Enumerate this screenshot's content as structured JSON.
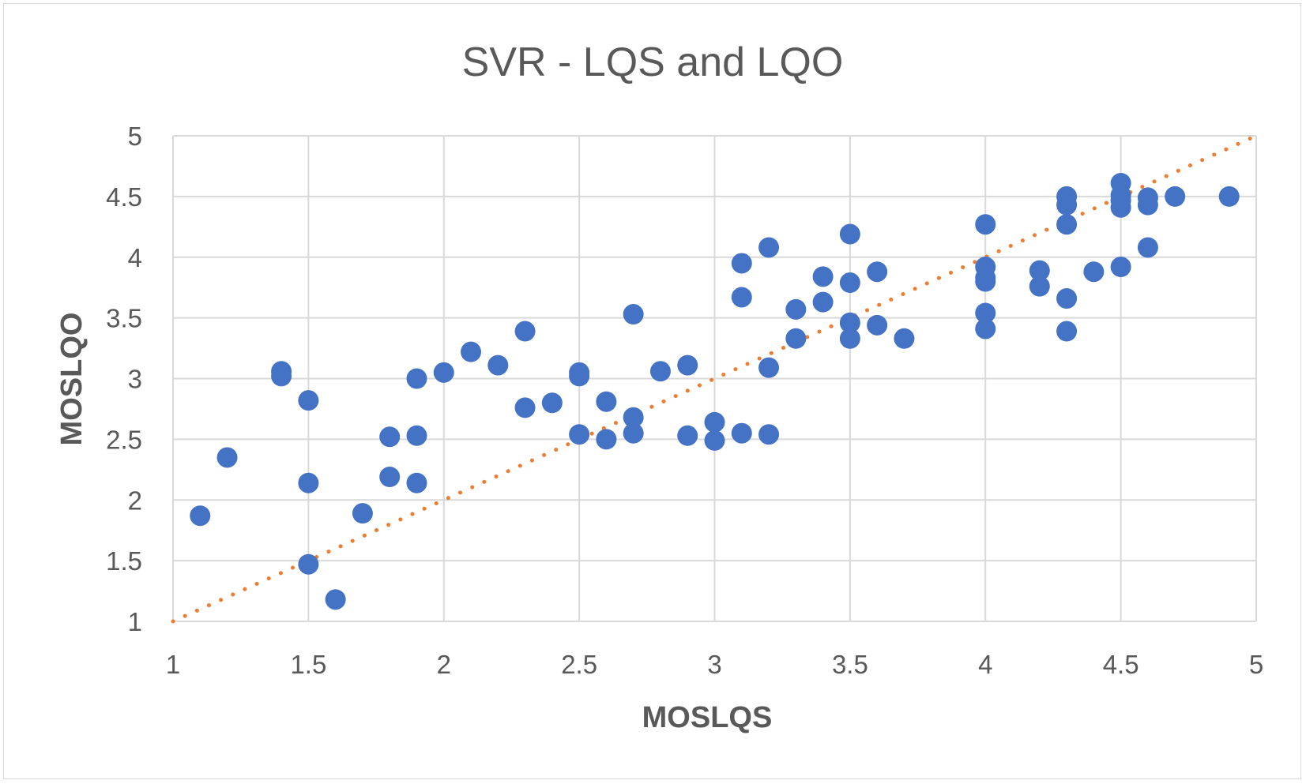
{
  "chart_data": {
    "type": "scatter",
    "title": "SVR - LQS and LQO",
    "xlabel": "MOSLQS",
    "ylabel": "MOSLQO",
    "xlim": [
      1,
      5
    ],
    "ylim": [
      1,
      5
    ],
    "xticks": [
      "1",
      "1.5",
      "2",
      "2.5",
      "3",
      "3.5",
      "4",
      "4.5",
      "5"
    ],
    "yticks": [
      "1",
      "1.5",
      "2",
      "2.5",
      "3",
      "3.5",
      "4",
      "4.5",
      "5"
    ],
    "grid": true,
    "legend": "none",
    "colors": {
      "points": "#4472C4",
      "trendline": "#ED7D31",
      "grid": "#d9d9d9",
      "text": "#595959"
    },
    "trendline": {
      "style": "dotted",
      "x": [
        1,
        5
      ],
      "y": [
        1,
        5
      ]
    },
    "series": [
      {
        "points": [
          [
            1.1,
            1.87
          ],
          [
            1.2,
            2.35
          ],
          [
            1.4,
            3.06
          ],
          [
            1.4,
            3.02
          ],
          [
            1.5,
            2.82
          ],
          [
            1.5,
            2.14
          ],
          [
            1.5,
            1.47
          ],
          [
            1.6,
            1.18
          ],
          [
            1.7,
            1.89
          ],
          [
            1.8,
            2.52
          ],
          [
            1.8,
            2.19
          ],
          [
            1.9,
            3.0
          ],
          [
            1.9,
            2.53
          ],
          [
            1.9,
            2.14
          ],
          [
            2.0,
            3.05
          ],
          [
            2.1,
            3.22
          ],
          [
            2.2,
            3.11
          ],
          [
            2.3,
            3.39
          ],
          [
            2.3,
            2.76
          ],
          [
            2.4,
            2.8
          ],
          [
            2.5,
            3.05
          ],
          [
            2.5,
            3.02
          ],
          [
            2.5,
            2.54
          ],
          [
            2.6,
            2.81
          ],
          [
            2.6,
            2.5
          ],
          [
            2.7,
            3.53
          ],
          [
            2.7,
            2.68
          ],
          [
            2.7,
            2.55
          ],
          [
            2.8,
            3.06
          ],
          [
            2.9,
            3.11
          ],
          [
            2.9,
            2.53
          ],
          [
            3.0,
            2.64
          ],
          [
            3.0,
            2.49
          ],
          [
            3.1,
            3.95
          ],
          [
            3.1,
            3.67
          ],
          [
            3.1,
            2.55
          ],
          [
            3.2,
            4.08
          ],
          [
            3.2,
            3.09
          ],
          [
            3.2,
            2.54
          ],
          [
            3.3,
            3.57
          ],
          [
            3.3,
            3.33
          ],
          [
            3.4,
            3.84
          ],
          [
            3.4,
            3.63
          ],
          [
            3.5,
            4.19
          ],
          [
            3.5,
            3.79
          ],
          [
            3.5,
            3.46
          ],
          [
            3.5,
            3.33
          ],
          [
            3.6,
            3.88
          ],
          [
            3.6,
            3.44
          ],
          [
            3.7,
            3.33
          ],
          [
            4.0,
            4.27
          ],
          [
            4.0,
            3.92
          ],
          [
            4.0,
            3.83
          ],
          [
            4.0,
            3.8
          ],
          [
            4.0,
            3.54
          ],
          [
            4.0,
            3.41
          ],
          [
            4.2,
            3.89
          ],
          [
            4.2,
            3.76
          ],
          [
            4.3,
            4.5
          ],
          [
            4.3,
            4.43
          ],
          [
            4.3,
            4.27
          ],
          [
            4.3,
            3.66
          ],
          [
            4.3,
            3.39
          ],
          [
            4.4,
            3.88
          ],
          [
            4.5,
            4.61
          ],
          [
            4.5,
            4.51
          ],
          [
            4.5,
            4.47
          ],
          [
            4.5,
            4.41
          ],
          [
            4.5,
            3.92
          ],
          [
            4.6,
            4.49
          ],
          [
            4.6,
            4.43
          ],
          [
            4.6,
            4.08
          ],
          [
            4.7,
            4.5
          ],
          [
            4.9,
            4.5
          ]
        ]
      }
    ]
  }
}
